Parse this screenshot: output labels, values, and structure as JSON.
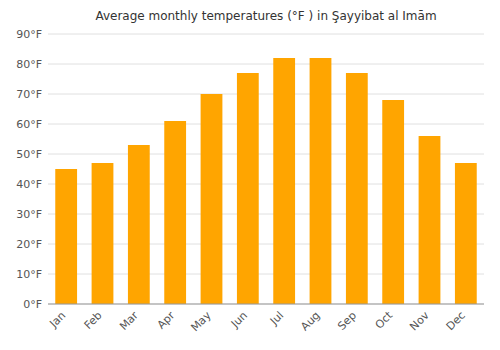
{
  "chart_data": {
    "type": "bar",
    "title": "Average monthly temperatures (°F ) in Ş̣ayyibat al Imām",
    "categories": [
      "Jan",
      "Feb",
      "Mar",
      "Apr",
      "May",
      "Jun",
      "Jul",
      "Aug",
      "Sep",
      "Oct",
      "Nov",
      "Dec"
    ],
    "values": [
      45,
      47,
      53,
      61,
      70,
      77,
      82,
      82,
      77,
      68,
      56,
      47
    ],
    "color": "#FFA500",
    "ylim": [
      0,
      90
    ],
    "yticks": [
      {
        "value": 0,
        "label": "0°F"
      },
      {
        "value": 10,
        "label": "10°F"
      },
      {
        "value": 20,
        "label": "20°F"
      },
      {
        "value": 30,
        "label": "30°F"
      },
      {
        "value": 40,
        "label": "40°F"
      },
      {
        "value": 50,
        "label": "50°F"
      },
      {
        "value": 60,
        "label": "60°F"
      },
      {
        "value": 70,
        "label": "70°F"
      },
      {
        "value": 80,
        "label": "80°F"
      },
      {
        "value": 90,
        "label": "90°F"
      }
    ],
    "grid": true
  }
}
